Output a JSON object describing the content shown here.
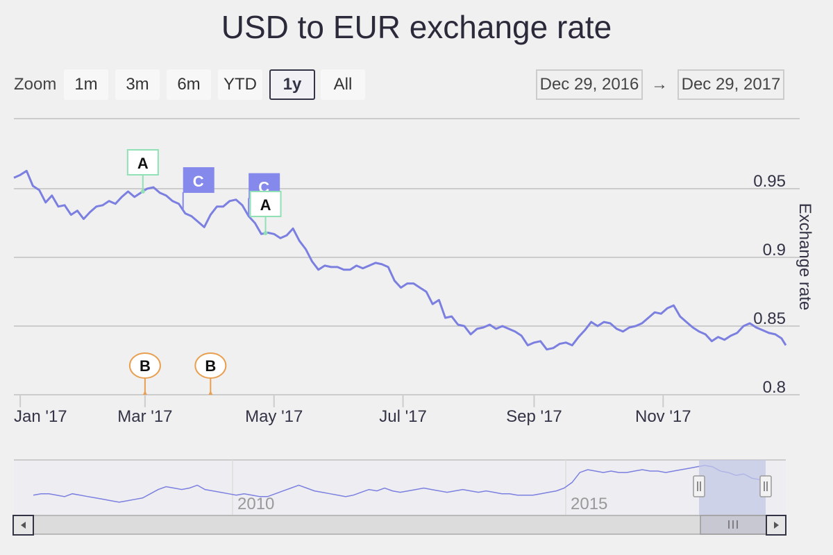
{
  "title": "USD to EUR exchange rate",
  "zoom": {
    "label": "Zoom",
    "buttons": [
      "1m",
      "3m",
      "6m",
      "YTD",
      "1y",
      "All"
    ],
    "active": "1y"
  },
  "range": {
    "from": "Dec 29, 2016",
    "arrow": "→",
    "to": "Dec 29, 2017"
  },
  "colors": {
    "series": "#7b7fe0",
    "flag_a": "#90e0b5",
    "flag_b": "#e89f50",
    "flag_c": "#8589eb",
    "grid": "#cccccc",
    "navigator_mask": "#c2c8e6"
  },
  "chart_data": {
    "type": "line",
    "title": "USD to EUR exchange rate",
    "ylabel": "Exchange rate",
    "ylim": [
      0.8,
      0.97
    ],
    "yticks": [
      0.8,
      0.85,
      0.9,
      0.95
    ],
    "ytick_labels": [
      "0.8",
      "0.85",
      "0.9",
      "0.95"
    ],
    "xlim": [
      "2016-12-29",
      "2017-12-29"
    ],
    "xticks": [
      "2017-01-01",
      "2017-03-01",
      "2017-05-01",
      "2017-07-01",
      "2017-09-01",
      "2017-11-01"
    ],
    "xtick_labels": [
      "Jan '17",
      "Mar '17",
      "May '17",
      "Jul '17",
      "Sep '17",
      "Nov '17"
    ],
    "grid": true,
    "series": [
      {
        "name": "USD to EUR",
        "x": [
          "2016-12-29",
          "2017-01-01",
          "2017-01-04",
          "2017-01-07",
          "2017-01-10",
          "2017-01-13",
          "2017-01-16",
          "2017-01-19",
          "2017-01-22",
          "2017-01-25",
          "2017-01-28",
          "2017-01-31",
          "2017-02-03",
          "2017-02-06",
          "2017-02-09",
          "2017-02-12",
          "2017-02-15",
          "2017-02-18",
          "2017-02-21",
          "2017-02-24",
          "2017-02-27",
          "2017-03-02",
          "2017-03-05",
          "2017-03-08",
          "2017-03-11",
          "2017-03-14",
          "2017-03-17",
          "2017-03-20",
          "2017-03-23",
          "2017-03-26",
          "2017-03-29",
          "2017-04-01",
          "2017-04-04",
          "2017-04-07",
          "2017-04-10",
          "2017-04-13",
          "2017-04-16",
          "2017-04-19",
          "2017-04-22",
          "2017-04-25",
          "2017-04-28",
          "2017-05-01",
          "2017-05-04",
          "2017-05-07",
          "2017-05-10",
          "2017-05-13",
          "2017-05-16",
          "2017-05-19",
          "2017-05-22",
          "2017-05-25",
          "2017-05-28",
          "2017-05-31",
          "2017-06-03",
          "2017-06-06",
          "2017-06-09",
          "2017-06-12",
          "2017-06-15",
          "2017-06-18",
          "2017-06-21",
          "2017-06-24",
          "2017-06-27",
          "2017-06-30",
          "2017-07-03",
          "2017-07-06",
          "2017-07-09",
          "2017-07-12",
          "2017-07-15",
          "2017-07-18",
          "2017-07-21",
          "2017-07-24",
          "2017-07-27",
          "2017-07-30",
          "2017-08-02",
          "2017-08-05",
          "2017-08-08",
          "2017-08-11",
          "2017-08-14",
          "2017-08-17",
          "2017-08-20",
          "2017-08-23",
          "2017-08-26",
          "2017-08-29",
          "2017-09-01",
          "2017-09-04",
          "2017-09-07",
          "2017-09-10",
          "2017-09-13",
          "2017-09-16",
          "2017-09-19",
          "2017-09-22",
          "2017-09-25",
          "2017-09-28",
          "2017-10-01",
          "2017-10-04",
          "2017-10-07",
          "2017-10-10",
          "2017-10-13",
          "2017-10-16",
          "2017-10-19",
          "2017-10-22",
          "2017-10-25",
          "2017-10-28",
          "2017-10-31",
          "2017-11-03",
          "2017-11-06",
          "2017-11-09",
          "2017-11-12",
          "2017-11-15",
          "2017-11-18",
          "2017-11-21",
          "2017-11-24",
          "2017-11-27",
          "2017-11-30",
          "2017-12-03",
          "2017-12-06",
          "2017-12-09",
          "2017-12-12",
          "2017-12-15",
          "2017-12-18",
          "2017-12-21",
          "2017-12-24",
          "2017-12-27",
          "2017-12-29"
        ],
        "values": [
          0.958,
          0.96,
          0.963,
          0.952,
          0.949,
          0.94,
          0.945,
          0.937,
          0.938,
          0.931,
          0.934,
          0.928,
          0.933,
          0.937,
          0.938,
          0.941,
          0.939,
          0.944,
          0.948,
          0.944,
          0.947,
          0.95,
          0.951,
          0.947,
          0.945,
          0.941,
          0.939,
          0.932,
          0.93,
          0.926,
          0.922,
          0.931,
          0.937,
          0.937,
          0.941,
          0.942,
          0.938,
          0.93,
          0.925,
          0.917,
          0.918,
          0.917,
          0.914,
          0.916,
          0.921,
          0.912,
          0.906,
          0.897,
          0.891,
          0.894,
          0.893,
          0.893,
          0.891,
          0.891,
          0.894,
          0.892,
          0.894,
          0.896,
          0.895,
          0.893,
          0.883,
          0.878,
          0.881,
          0.881,
          0.878,
          0.875,
          0.866,
          0.869,
          0.856,
          0.857,
          0.851,
          0.85,
          0.844,
          0.848,
          0.849,
          0.851,
          0.848,
          0.85,
          0.848,
          0.846,
          0.843,
          0.836,
          0.838,
          0.839,
          0.833,
          0.834,
          0.837,
          0.838,
          0.836,
          0.842,
          0.847,
          0.853,
          0.85,
          0.853,
          0.852,
          0.848,
          0.846,
          0.849,
          0.85,
          0.852,
          0.856,
          0.86,
          0.859,
          0.863,
          0.865,
          0.857,
          0.853,
          0.849,
          0.846,
          0.844,
          0.839,
          0.842,
          0.84,
          0.843,
          0.845,
          0.85,
          0.852,
          0.849,
          0.847,
          0.845,
          0.844,
          0.841,
          0.836
        ]
      }
    ],
    "flags": [
      {
        "label": "A",
        "date": "2017-02-28",
        "series": "USD to EUR",
        "style": "squarepin",
        "color": "#90e0b5"
      },
      {
        "label": "C",
        "date": "2017-03-19",
        "series": "USD to EUR",
        "style": "flag",
        "color": "#8589eb"
      },
      {
        "label": "C",
        "date": "2017-04-19",
        "series": "USD to EUR",
        "style": "flag",
        "color": "#8589eb"
      },
      {
        "label": "A",
        "date": "2017-04-27",
        "series": "USD to EUR",
        "style": "squarepin",
        "color": "#90e0b5"
      },
      {
        "label": "B",
        "date": "2017-03-01",
        "series": "axis",
        "style": "circlepin",
        "color": "#e89f50"
      },
      {
        "label": "B",
        "date": "2017-04-01",
        "series": "axis",
        "style": "circlepin",
        "color": "#e89f50"
      }
    ],
    "navigator": {
      "tick_labels": [
        "2010",
        "2015"
      ],
      "selected_range": [
        "2016-12-29",
        "2017-12-29"
      ],
      "values": [
        0.73,
        0.74,
        0.74,
        0.73,
        0.72,
        0.74,
        0.73,
        0.72,
        0.71,
        0.7,
        0.69,
        0.68,
        0.69,
        0.7,
        0.71,
        0.74,
        0.77,
        0.79,
        0.78,
        0.77,
        0.78,
        0.8,
        0.77,
        0.76,
        0.75,
        0.74,
        0.73,
        0.74,
        0.73,
        0.72,
        0.72,
        0.74,
        0.76,
        0.78,
        0.8,
        0.78,
        0.76,
        0.75,
        0.74,
        0.73,
        0.72,
        0.73,
        0.75,
        0.77,
        0.76,
        0.78,
        0.76,
        0.75,
        0.76,
        0.77,
        0.78,
        0.77,
        0.76,
        0.75,
        0.76,
        0.77,
        0.76,
        0.75,
        0.76,
        0.75,
        0.74,
        0.74,
        0.73,
        0.73,
        0.73,
        0.74,
        0.75,
        0.76,
        0.78,
        0.82,
        0.89,
        0.91,
        0.9,
        0.89,
        0.9,
        0.89,
        0.89,
        0.9,
        0.91,
        0.9,
        0.9,
        0.89,
        0.9,
        0.91,
        0.92,
        0.93,
        0.94,
        0.93,
        0.9,
        0.89,
        0.87,
        0.88,
        0.85,
        0.84
      ]
    }
  }
}
